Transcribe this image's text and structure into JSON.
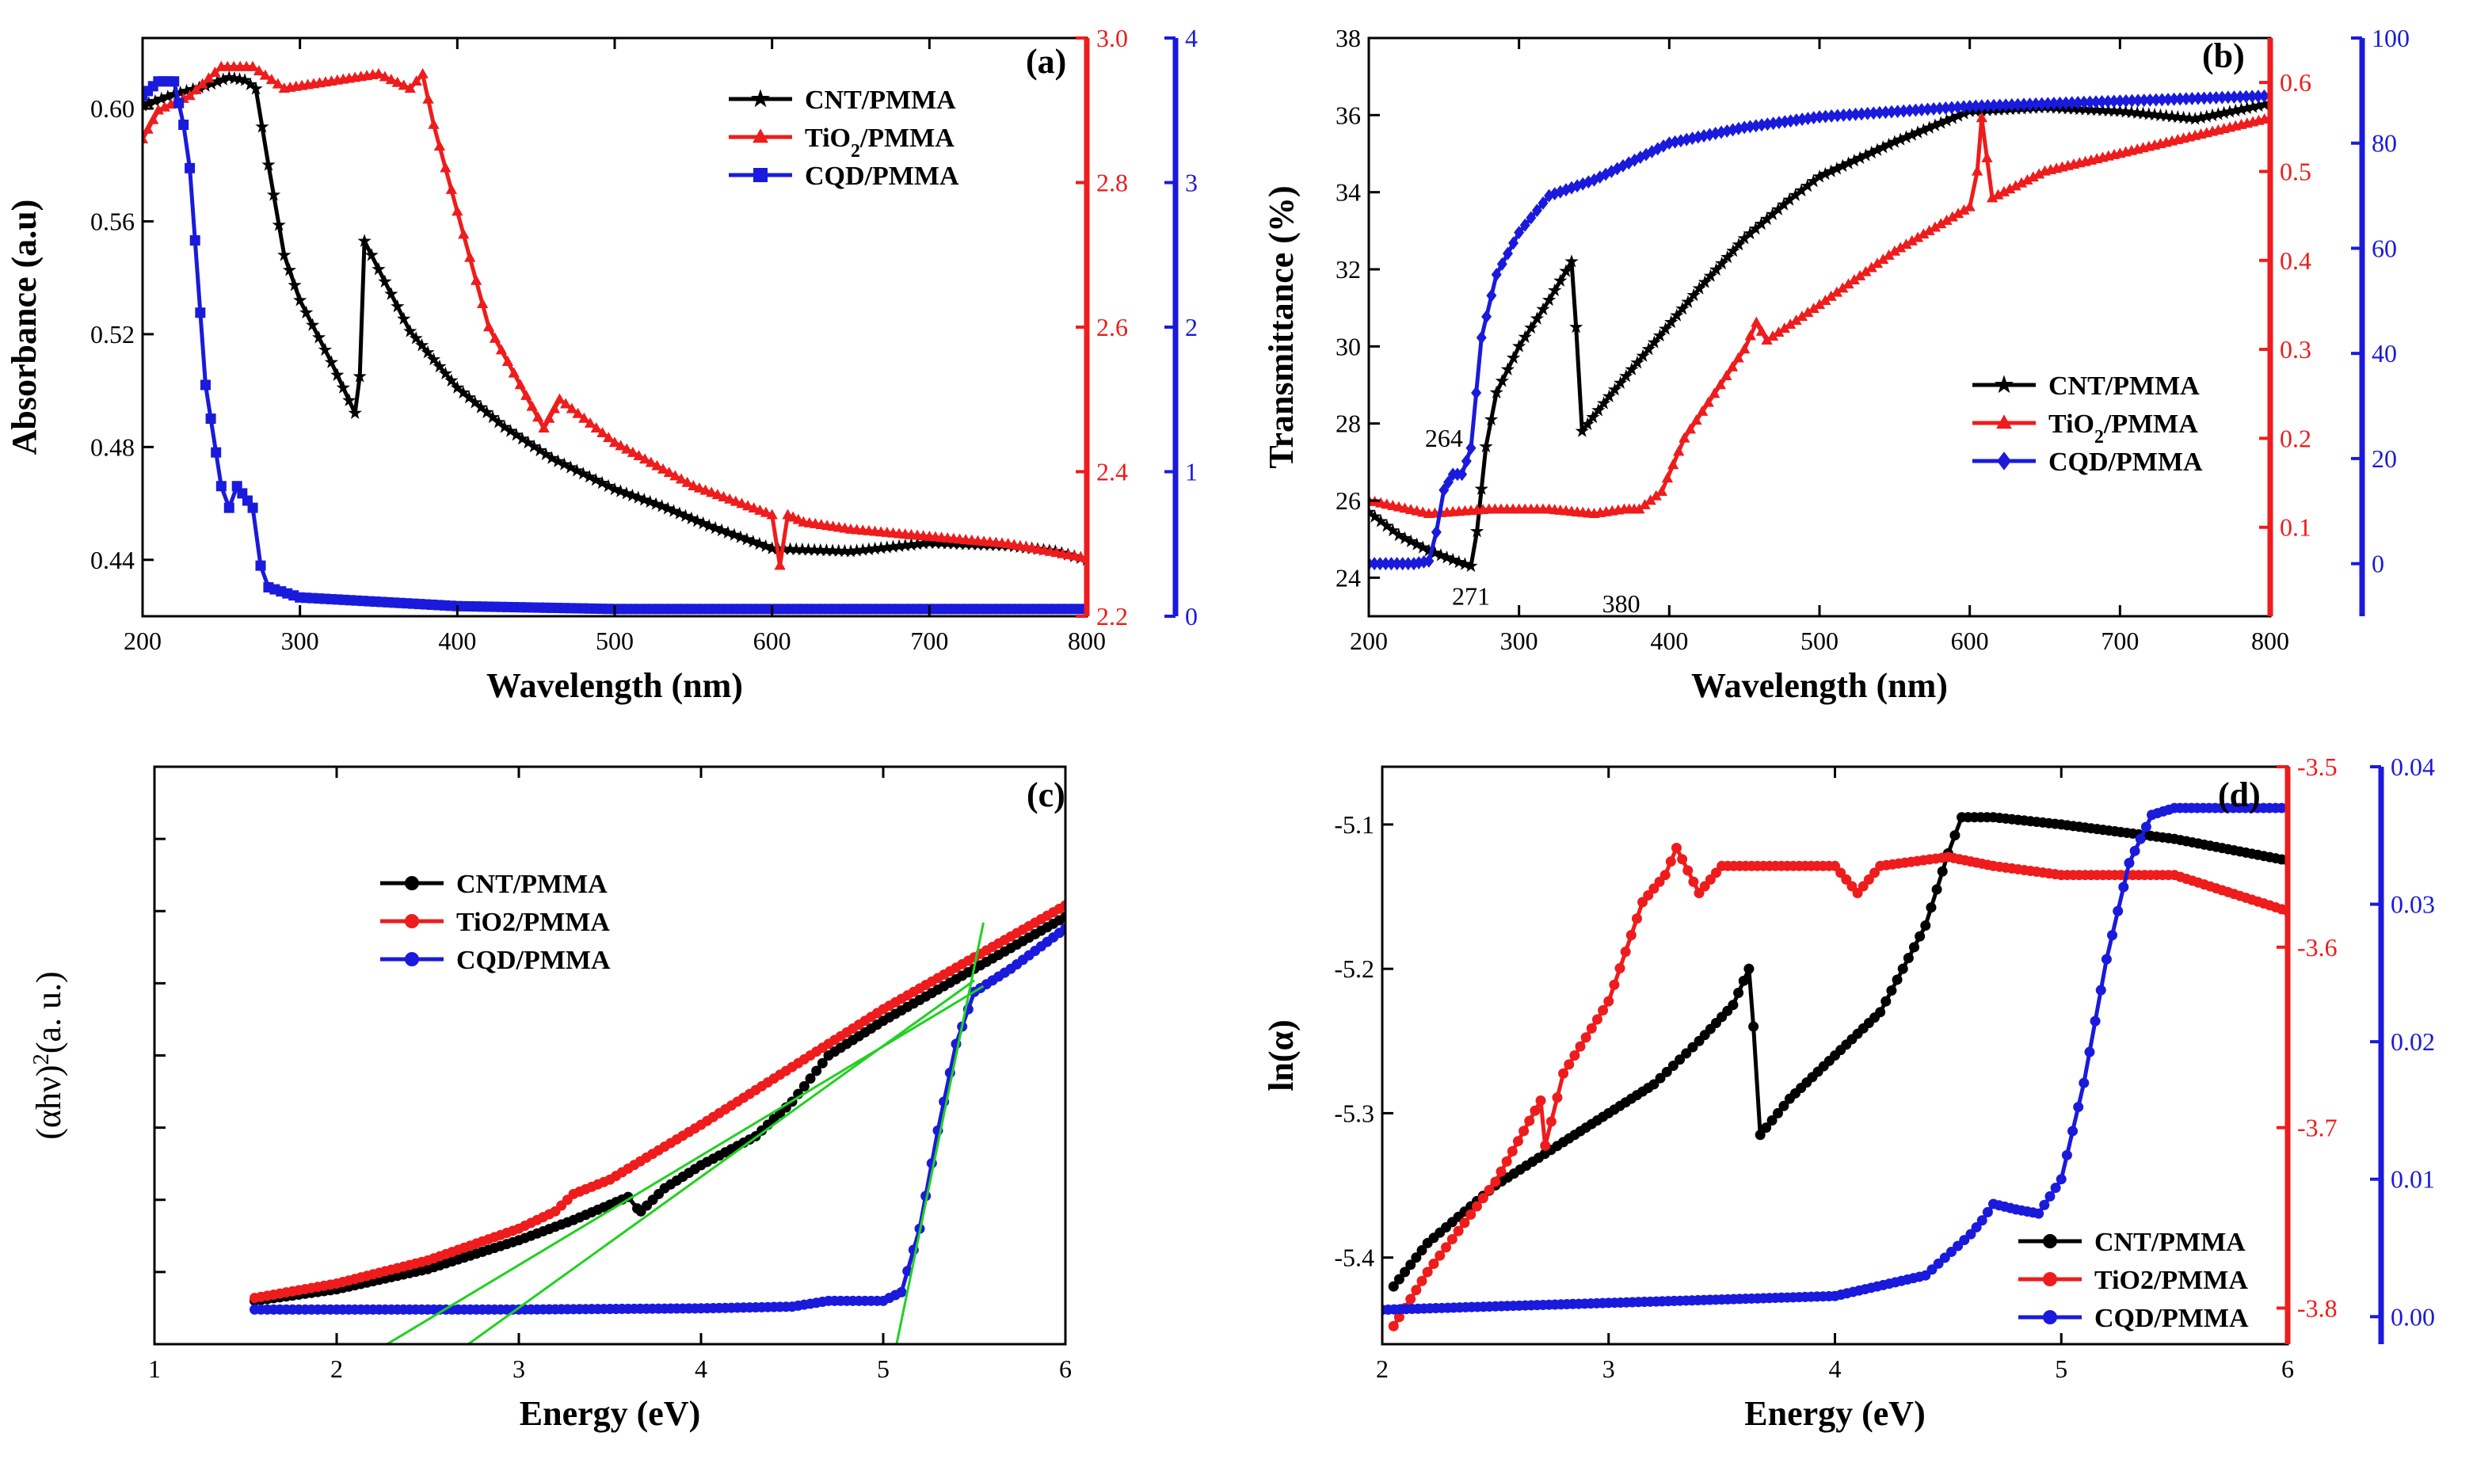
{
  "chart_data": [
    {
      "id": "a",
      "type": "line",
      "panel_label": "(a)",
      "xlabel": "Wavelength (nm)",
      "ylabel": "Absorbance (a.u)",
      "xlim": [
        200,
        800
      ],
      "xticks": [
        200,
        300,
        400,
        500,
        600,
        700,
        800
      ],
      "axes": {
        "left": {
          "lim": [
            0.42,
            0.625
          ],
          "ticks": [
            "0.44",
            "0.48",
            "0.52",
            "0.56",
            "0.60"
          ],
          "color": "#000000"
        },
        "right1": {
          "lim": [
            2.2,
            3.0
          ],
          "ticks": [
            "2.2",
            "2.4",
            "2.6",
            "2.8",
            "3.0"
          ],
          "color": "#ee1c1c"
        },
        "right2": {
          "lim": [
            0,
            4
          ],
          "ticks": [
            "0",
            "1",
            "2",
            "3",
            "4"
          ],
          "color": "#1a1adc"
        }
      },
      "legend_position": "top-right",
      "series": [
        {
          "name": "CNT/PMMA",
          "legend_html": "CNT/PMMA",
          "axis": "left",
          "color": "#000000",
          "marker": "star",
          "x": [
            200,
            220,
            240,
            255,
            265,
            272,
            280,
            290,
            300,
            320,
            335,
            338,
            341,
            350,
            370,
            400,
            430,
            460,
            500,
            530,
            560,
            600,
            650,
            700,
            750,
            780,
            800
          ],
          "y": [
            0.601,
            0.605,
            0.608,
            0.611,
            0.61,
            0.607,
            0.58,
            0.548,
            0.532,
            0.51,
            0.492,
            0.505,
            0.553,
            0.543,
            0.521,
            0.501,
            0.487,
            0.476,
            0.465,
            0.459,
            0.452,
            0.444,
            0.443,
            0.446,
            0.445,
            0.443,
            0.44
          ]
        },
        {
          "name": "TiO2/PMMA",
          "legend_html": "TiO<tspan baseline-shift=\"sub\" font-size=\"70%\">2</tspan>/PMMA",
          "axis": "right1",
          "color": "#ee1c1c",
          "marker": "triangle",
          "x": [
            200,
            210,
            230,
            250,
            270,
            290,
            320,
            350,
            370,
            378,
            385,
            400,
            420,
            440,
            455,
            465,
            500,
            550,
            600,
            605,
            610,
            620,
            650,
            700,
            750,
            800
          ],
          "y": [
            2.86,
            2.9,
            2.92,
            2.96,
            2.96,
            2.93,
            2.94,
            2.95,
            2.93,
            2.95,
            2.88,
            2.76,
            2.6,
            2.52,
            2.46,
            2.5,
            2.44,
            2.38,
            2.34,
            2.27,
            2.34,
            2.33,
            2.32,
            2.31,
            2.3,
            2.28
          ]
        },
        {
          "name": "CQD/PMMA",
          "legend_html": "CQD/PMMA",
          "axis": "right2",
          "color": "#1a1adc",
          "marker": "square",
          "x": [
            200,
            210,
            220,
            226,
            230,
            240,
            250,
            255,
            260,
            270,
            275,
            280,
            300,
            400,
            500,
            600,
            700,
            800
          ],
          "y": [
            3.6,
            3.7,
            3.7,
            3.4,
            3.1,
            1.6,
            0.9,
            0.75,
            0.9,
            0.75,
            0.35,
            0.2,
            0.13,
            0.07,
            0.05,
            0.05,
            0.05,
            0.05
          ]
        }
      ]
    },
    {
      "id": "b",
      "type": "line",
      "panel_label": "(b)",
      "xlabel": "Wavelength (nm)",
      "ylabel": "Transmittance (%)",
      "xlim": [
        200,
        800
      ],
      "xticks": [
        200,
        300,
        400,
        500,
        600,
        700,
        800
      ],
      "axes": {
        "left": {
          "lim": [
            23,
            38
          ],
          "ticks": [
            "24",
            "26",
            "28",
            "30",
            "32",
            "34",
            "36",
            "38"
          ],
          "color": "#000000"
        },
        "right1": {
          "lim": [
            0.0,
            0.65
          ],
          "ticks": [
            "0.1",
            "0.2",
            "0.3",
            "0.4",
            "0.5",
            "0.6"
          ],
          "color": "#ee1c1c"
        },
        "right2": {
          "lim": [
            -10,
            100
          ],
          "ticks": [
            "0",
            "20",
            "40",
            "60",
            "80",
            "100"
          ],
          "color": "#1a1adc"
        }
      },
      "legend_position": "center-right",
      "annotations": [
        {
          "text": "264",
          "x": 250,
          "y_axis": "left",
          "y": 27.4
        },
        {
          "text": "271",
          "x": 268,
          "y_axis": "left",
          "y": 23.3
        },
        {
          "text": "380",
          "x": 368,
          "y_axis": "left",
          "y": 23.1
        }
      ],
      "series": [
        {
          "name": "CNT/PMMA",
          "legend_html": "CNT/PMMA",
          "axis": "left",
          "color": "#000000",
          "marker": "star",
          "x": [
            200,
            220,
            240,
            260,
            268,
            272,
            278,
            285,
            300,
            320,
            335,
            338,
            342,
            360,
            390,
            420,
            450,
            480,
            500,
            550,
            600,
            650,
            700,
            750,
            800
          ],
          "y": [
            25.7,
            25.1,
            24.7,
            24.4,
            24.3,
            25.2,
            27.4,
            28.8,
            30.0,
            31.2,
            32.2,
            30.5,
            27.8,
            28.7,
            30.1,
            31.5,
            32.8,
            33.8,
            34.4,
            35.3,
            36.1,
            36.2,
            36.1,
            35.9,
            36.3
          ]
        },
        {
          "name": "TiO2/PMMA",
          "legend_html": "TiO<tspan baseline-shift=\"sub\" font-size=\"70%\">2</tspan>/PMMA",
          "axis": "right1",
          "color": "#ee1c1c",
          "marker": "triangle",
          "x": [
            200,
            240,
            280,
            320,
            350,
            370,
            380,
            395,
            410,
            430,
            450,
            458,
            465,
            500,
            550,
            600,
            605,
            608,
            615,
            650,
            700,
            750,
            800
          ],
          "y": [
            0.13,
            0.115,
            0.12,
            0.12,
            0.115,
            0.12,
            0.12,
            0.14,
            0.2,
            0.25,
            0.3,
            0.33,
            0.31,
            0.35,
            0.41,
            0.46,
            0.5,
            0.56,
            0.47,
            0.5,
            0.52,
            0.54,
            0.56
          ]
        },
        {
          "name": "CQD/PMMA",
          "legend_html": "CQD/PMMA",
          "axis": "right2",
          "color": "#1a1adc",
          "marker": "diamond",
          "x": [
            200,
            230,
            240,
            245,
            250,
            256,
            262,
            268,
            275,
            285,
            300,
            320,
            350,
            400,
            450,
            500,
            600,
            700,
            800
          ],
          "y": [
            0,
            0,
            0.5,
            6,
            14,
            17,
            17,
            22,
            43,
            55,
            63,
            70,
            73,
            80,
            83,
            85,
            87,
            88,
            89
          ]
        }
      ]
    },
    {
      "id": "c",
      "type": "line",
      "panel_label": "(c)",
      "xlabel": "Energy (eV)",
      "ylabel": "(αhν)²(a. u.)",
      "ylabel_parts": [
        "(αhν)",
        "2",
        "(a. u.)"
      ],
      "xlim": [
        1,
        6
      ],
      "xticks": [
        1,
        2,
        3,
        4,
        5,
        6
      ],
      "axes": {
        "left": {
          "lim": [
            0,
            1
          ],
          "ticks": [],
          "color": "#000000"
        }
      },
      "legend_position": "top-left",
      "series": [
        {
          "name": "CNT/PMMA",
          "legend_html": "CNT/PMMA",
          "axis": "left",
          "color": "#000000",
          "marker": "circle",
          "x": [
            1.55,
            2.0,
            2.5,
            3.0,
            3.3,
            3.6,
            3.65,
            3.67,
            3.8,
            4.0,
            4.3,
            4.5,
            4.7,
            5.0,
            5.5,
            6.0
          ],
          "y": [
            0.075,
            0.095,
            0.13,
            0.18,
            0.215,
            0.255,
            0.235,
            0.23,
            0.27,
            0.31,
            0.36,
            0.42,
            0.5,
            0.56,
            0.65,
            0.74
          ]
        },
        {
          "name": "TiO2/PMMA",
          "legend_html": "TiO2/PMMA",
          "axis": "left",
          "color": "#ee1c1c",
          "marker": "circle",
          "x": [
            1.55,
            2.0,
            2.5,
            3.0,
            3.2,
            3.3,
            3.5,
            4.0,
            4.5,
            5.0,
            5.5,
            6.0
          ],
          "y": [
            0.08,
            0.105,
            0.145,
            0.2,
            0.23,
            0.26,
            0.285,
            0.38,
            0.48,
            0.58,
            0.67,
            0.76
          ]
        },
        {
          "name": "CQD/PMMA",
          "legend_html": "CQD/PMMA",
          "axis": "left",
          "color": "#1a1adc",
          "marker": "circle",
          "x": [
            1.55,
            2.0,
            3.0,
            4.0,
            4.5,
            4.7,
            5.0,
            5.1,
            5.2,
            5.3,
            5.4,
            5.5,
            5.7,
            6.0
          ],
          "y": [
            0.06,
            0.06,
            0.06,
            0.062,
            0.065,
            0.075,
            0.075,
            0.09,
            0.2,
            0.37,
            0.52,
            0.61,
            0.65,
            0.72
          ]
        }
      ],
      "fit_lines": [
        {
          "color": "#22d022",
          "x": [
            2.25,
            5.55
          ],
          "y": [
            -0.005,
            0.62
          ]
        },
        {
          "color": "#22d022",
          "x": [
            2.7,
            5.5
          ],
          "y": [
            -0.005,
            0.63
          ]
        },
        {
          "color": "#22d022",
          "x": [
            5.07,
            5.55
          ],
          "y": [
            -0.005,
            0.73
          ]
        }
      ]
    },
    {
      "id": "d",
      "type": "line",
      "panel_label": "(d)",
      "xlabel": "Energy (eV)",
      "ylabel": "ln(α)",
      "xlim": [
        2,
        6
      ],
      "xticks": [
        2,
        3,
        4,
        5,
        6
      ],
      "axes": {
        "left": {
          "lim": [
            -5.46,
            -5.06
          ],
          "ticks": [
            "-5.4",
            "-5.3",
            "-5.2",
            "-5.1"
          ],
          "color": "#000000"
        },
        "right1": {
          "lim": [
            -3.82,
            -3.5
          ],
          "ticks": [
            "-3.8",
            "-3.7",
            "-3.6",
            "-3.5"
          ],
          "color": "#ee1c1c"
        },
        "right2": {
          "lim": [
            -0.002,
            0.04
          ],
          "ticks": [
            "0.00",
            "0.01",
            "0.02",
            "0.03",
            "0.04"
          ],
          "color": "#1a1adc"
        }
      },
      "legend_position": "bottom-right",
      "series": [
        {
          "name": "CNT/PMMA",
          "legend_html": "CNT/PMMA",
          "axis": "left",
          "color": "#000000",
          "marker": "circle",
          "x": [
            2.05,
            2.2,
            2.5,
            2.8,
            3.0,
            3.2,
            3.4,
            3.55,
            3.62,
            3.64,
            3.67,
            3.8,
            4.0,
            4.2,
            4.4,
            4.5,
            4.56,
            4.7,
            5.0,
            5.5,
            6.0
          ],
          "y": [
            -5.42,
            -5.39,
            -5.35,
            -5.32,
            -5.3,
            -5.28,
            -5.25,
            -5.225,
            -5.2,
            -5.24,
            -5.315,
            -5.29,
            -5.26,
            -5.23,
            -5.17,
            -5.12,
            -5.095,
            -5.095,
            -5.1,
            -5.11,
            -5.125
          ]
        },
        {
          "name": "TiO2/PMMA",
          "legend_html": "TiO2/PMMA",
          "axis": "right1",
          "color": "#ee1c1c",
          "marker": "circle",
          "x": [
            2.05,
            2.2,
            2.5,
            2.7,
            2.72,
            2.8,
            3.0,
            3.15,
            3.25,
            3.3,
            3.4,
            3.5,
            4.0,
            4.1,
            4.2,
            4.5,
            4.7,
            5.0,
            5.5,
            6.0
          ],
          "y": [
            -3.81,
            -3.78,
            -3.73,
            -3.685,
            -3.71,
            -3.67,
            -3.63,
            -3.575,
            -3.56,
            -3.545,
            -3.57,
            -3.555,
            -3.555,
            -3.57,
            -3.555,
            -3.55,
            -3.555,
            -3.56,
            -3.56,
            -3.58
          ]
        },
        {
          "name": "CQD/PMMA",
          "legend_html": "CQD/PMMA",
          "axis": "right2",
          "color": "#1a1adc",
          "marker": "circle",
          "x": [
            2.0,
            3.0,
            4.0,
            4.4,
            4.6,
            4.65,
            4.7,
            4.8,
            4.9,
            5.0,
            5.1,
            5.2,
            5.3,
            5.4,
            5.5,
            5.6,
            6.0
          ],
          "y": [
            0.0005,
            0.001,
            0.0015,
            0.003,
            0.006,
            0.007,
            0.0082,
            0.0078,
            0.0075,
            0.01,
            0.017,
            0.026,
            0.033,
            0.0365,
            0.037,
            0.037,
            0.037
          ]
        }
      ]
    }
  ]
}
